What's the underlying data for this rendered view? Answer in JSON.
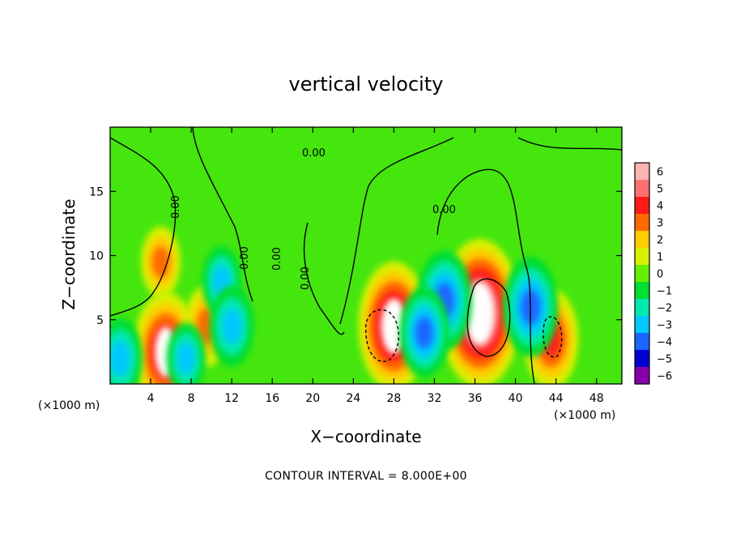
{
  "chart_data": {
    "type": "heatmap",
    "title": "vertical velocity",
    "xlabel": "X−coordinate",
    "ylabel": "Z−coordinate",
    "x_unit_left": "(×1000 m)",
    "x_unit_right": "(×1000 m)",
    "xlim": [
      0,
      50.5
    ],
    "ylim": [
      0,
      20
    ],
    "x_ticks": [
      4,
      8,
      12,
      16,
      20,
      24,
      28,
      32,
      36,
      40,
      44,
      48
    ],
    "y_ticks": [
      5,
      10,
      15
    ],
    "colorbar": {
      "levels": [
        6,
        5,
        4,
        3,
        2,
        1,
        0,
        -1,
        -2,
        -3,
        -4,
        -5,
        -6
      ],
      "colors": [
        "#ffb3b3",
        "#ff7070",
        "#ff1a1a",
        "#ff6a00",
        "#ffcc00",
        "#d8f000",
        "#66ee00",
        "#00dd33",
        "#00e8b0",
        "#00c8ff",
        "#1a66ff",
        "#0000d0",
        "#8800aa"
      ]
    },
    "contour_labels": [
      "0.00",
      "0.00",
      "0.00",
      "0.00",
      "0.00",
      "0.00"
    ],
    "features": [
      {
        "x": 36.5,
        "z": 5.5,
        "w": 6.5
      },
      {
        "x": 28,
        "z": 4.5,
        "w": 5.5
      },
      {
        "x": 43.5,
        "z": 3.5,
        "w": 4
      },
      {
        "x": 5.5,
        "z": 2.5,
        "w": 5
      },
      {
        "x": 9.5,
        "z": 4.5,
        "w": 3
      },
      {
        "x": 5,
        "z": 9.5,
        "w": 2.5
      },
      {
        "x": 33,
        "z": 6.5,
        "w": -4
      },
      {
        "x": 31,
        "z": 4,
        "w": -3.5
      },
      {
        "x": 41.5,
        "z": 6,
        "w": -4
      },
      {
        "x": 11,
        "z": 8,
        "w": -2.5
      },
      {
        "x": 12,
        "z": 4.5,
        "w": -3
      },
      {
        "x": 1,
        "z": 2,
        "w": -3
      },
      {
        "x": 7.5,
        "z": 2,
        "w": -2.5
      }
    ],
    "footer": "CONTOUR INTERVAL = 8.000E+00"
  }
}
